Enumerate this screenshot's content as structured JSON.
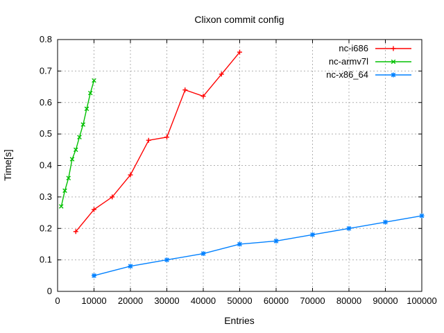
{
  "window": {
    "background": "#ffffff",
    "border_color": "#000000",
    "grid_color": "#b0b0b0",
    "text_color": "#000000"
  },
  "chart_data": {
    "type": "line",
    "title": "Clixon commit config",
    "xlabel": "Entries",
    "ylabel": "Time[s]",
    "xlim": [
      0,
      100000
    ],
    "ylim": [
      0,
      0.8
    ],
    "xticks": [
      0,
      10000,
      20000,
      30000,
      40000,
      50000,
      60000,
      70000,
      80000,
      90000,
      100000
    ],
    "xtick_labels": [
      "0",
      "10000",
      "20000",
      "30000",
      "40000",
      "50000",
      "60000",
      "70000",
      "80000",
      "90000",
      "100000"
    ],
    "yticks": [
      0,
      0.1,
      0.2,
      0.3,
      0.4,
      0.5,
      0.6,
      0.7,
      0.8
    ],
    "ytick_labels": [
      "0",
      "0.1",
      "0.2",
      "0.3",
      "0.4",
      "0.5",
      "0.6",
      "0.7",
      "0.8"
    ],
    "grid": true,
    "grid_style": "dashed",
    "legend_position": "top-right-inside",
    "series": [
      {
        "name": "nc-i686",
        "color": "#ff0000",
        "marker": "plus",
        "points": [
          [
            5000,
            0.19
          ],
          [
            10000,
            0.26
          ],
          [
            15000,
            0.3
          ],
          [
            20000,
            0.37
          ],
          [
            25000,
            0.48
          ],
          [
            30000,
            0.49
          ],
          [
            35000,
            0.64
          ],
          [
            40000,
            0.62
          ],
          [
            45000,
            0.69
          ],
          [
            50000,
            0.76
          ]
        ]
      },
      {
        "name": "nc-armv7l",
        "color": "#00c000",
        "marker": "cross",
        "points": [
          [
            1000,
            0.27
          ],
          [
            2000,
            0.32
          ],
          [
            3000,
            0.36
          ],
          [
            4000,
            0.42
          ],
          [
            5000,
            0.45
          ],
          [
            6000,
            0.49
          ],
          [
            7000,
            0.53
          ],
          [
            8000,
            0.58
          ],
          [
            9000,
            0.63
          ],
          [
            10000,
            0.67
          ]
        ]
      },
      {
        "name": "nc-x86_64",
        "color": "#0080ff",
        "marker": "star",
        "points": [
          [
            10000,
            0.05
          ],
          [
            20000,
            0.08
          ],
          [
            30000,
            0.1
          ],
          [
            40000,
            0.12
          ],
          [
            50000,
            0.15
          ],
          [
            60000,
            0.16
          ],
          [
            70000,
            0.18
          ],
          [
            80000,
            0.2
          ],
          [
            90000,
            0.22
          ],
          [
            100000,
            0.24
          ]
        ]
      }
    ]
  }
}
